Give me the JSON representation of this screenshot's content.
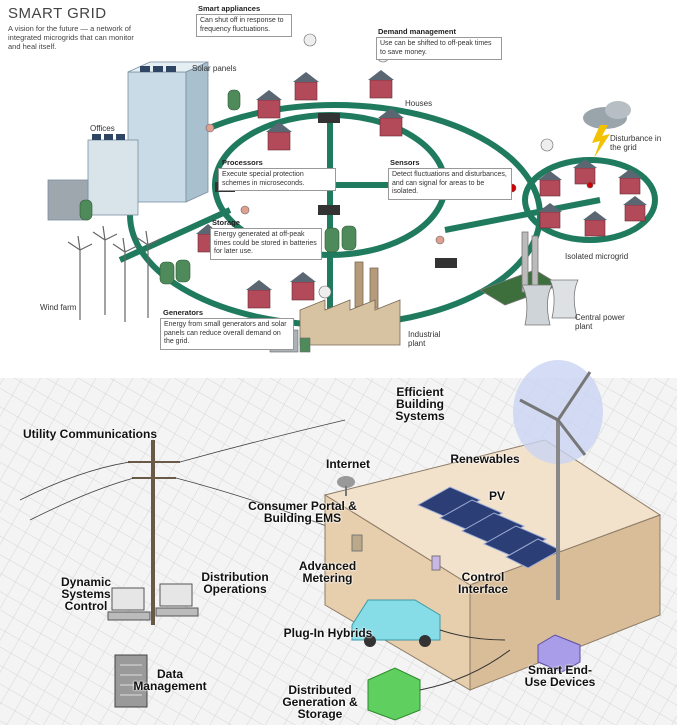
{
  "top": {
    "title": "SMART GRID",
    "subtitle": "A vision for the future — a network of integrated microgrids that can monitor and heal itself.",
    "labels": {
      "solar_panels": "Solar panels",
      "offices": "Offices",
      "houses": "Houses",
      "wind_farm": "Wind farm",
      "industrial_plant": "Industrial plant",
      "central_power_plant": "Central power plant",
      "isolated_microgrid": "Isolated microgrid",
      "disturbance": "Disturbance in the grid"
    },
    "callouts": [
      {
        "heading": "Smart appliances",
        "text": "Can shut off in response to frequency fluctuations."
      },
      {
        "heading": "Demand management",
        "text": "Use can be shifted to off-peak times to save money."
      },
      {
        "heading": "Processors",
        "text": "Execute special protection schemes in microseconds."
      },
      {
        "heading": "Sensors",
        "text": "Detect fluctuations and disturbances, and can signal for areas to be isolated."
      },
      {
        "heading": "Storage",
        "text": "Energy generated at off-peak times could be stored in batteries for later use."
      },
      {
        "heading": "Generators",
        "text": "Energy from small generators and solar panels can reduce overall demand on the grid."
      }
    ]
  },
  "bottom": {
    "labels": [
      "Efficient Building Systems",
      "Utility Communications",
      "Internet",
      "Renewables",
      "PV",
      "Consumer Portal & Building EMS",
      "Advanced Metering",
      "Control Interface",
      "Dynamic Systems Control",
      "Distribution Operations",
      "Plug-In Hybrids",
      "Data Management",
      "Distributed Generation & Storage",
      "Smart End-Use Devices"
    ]
  }
}
